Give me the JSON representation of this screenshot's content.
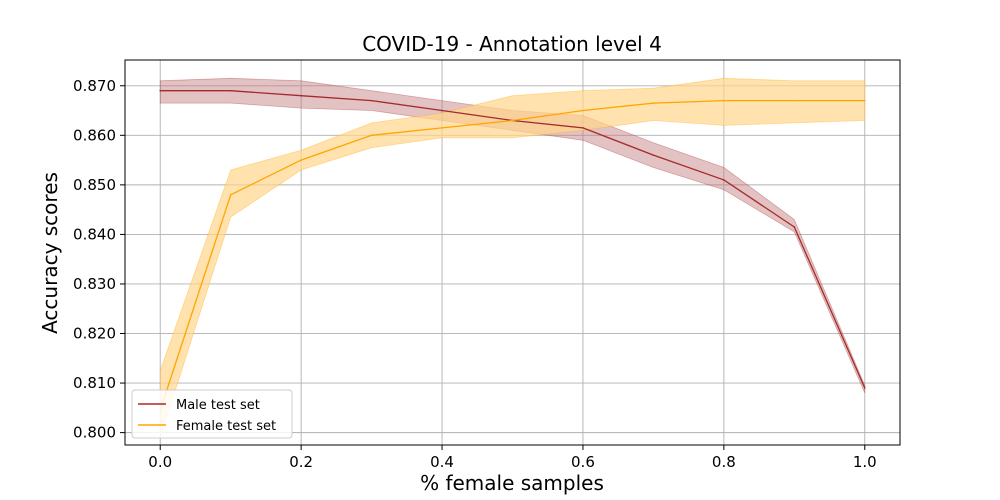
{
  "chart_data": {
    "type": "line",
    "title": "COVID-19 - Annotation level 4",
    "xlabel": "% female samples",
    "ylabel": "Accuracy scores",
    "xlim": [
      -0.05,
      1.05
    ],
    "ylim": [
      0.7975,
      0.8752
    ],
    "grid": true,
    "legend_position": "lower-left",
    "xticks": [
      "0.0",
      "0.2",
      "0.4",
      "0.6",
      "0.8",
      "1.0"
    ],
    "yticks": [
      "0.800",
      "0.810",
      "0.820",
      "0.830",
      "0.840",
      "0.850",
      "0.860",
      "0.870"
    ],
    "x": [
      0.0,
      0.1,
      0.2,
      0.3,
      0.4,
      0.5,
      0.6,
      0.7,
      0.8,
      0.9,
      1.0
    ],
    "series": [
      {
        "name": "Male test set",
        "color": "#a52a2a",
        "band_color": "#c0787a",
        "values": [
          0.869,
          0.869,
          0.868,
          0.867,
          0.865,
          0.863,
          0.8615,
          0.856,
          0.851,
          0.8415,
          0.809
        ],
        "lower": [
          0.8665,
          0.8665,
          0.8655,
          0.865,
          0.863,
          0.861,
          0.859,
          0.8535,
          0.849,
          0.8405,
          0.808
        ],
        "upper": [
          0.871,
          0.8715,
          0.871,
          0.869,
          0.867,
          0.865,
          0.864,
          0.8585,
          0.8535,
          0.843,
          0.8095
        ]
      },
      {
        "name": "Female test set",
        "color": "#ffa500",
        "band_color": "#ffd68a",
        "values": [
          0.8045,
          0.848,
          0.855,
          0.86,
          0.8615,
          0.863,
          0.865,
          0.8665,
          0.867,
          0.867,
          0.867
        ],
        "lower": [
          0.799,
          0.8435,
          0.853,
          0.8575,
          0.8595,
          0.8595,
          0.861,
          0.863,
          0.862,
          0.8625,
          0.863
        ],
        "upper": [
          0.8125,
          0.853,
          0.857,
          0.8625,
          0.8645,
          0.868,
          0.869,
          0.8695,
          0.8715,
          0.871,
          0.871
        ]
      }
    ]
  }
}
